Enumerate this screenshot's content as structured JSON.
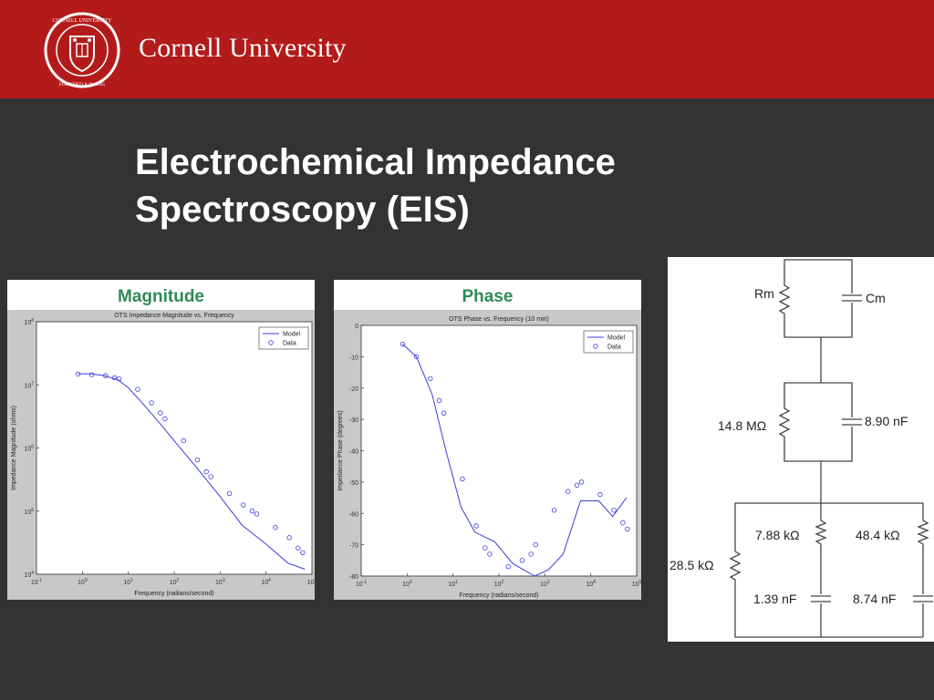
{
  "header": {
    "brand": "Cornell University",
    "seal_text": "CORNELL UNIVERSITY · FOUNDED A.D. 1865",
    "brand_color": "#b31b1b"
  },
  "slide": {
    "title_line1": "Electrochemical Impedance",
    "title_line2": "Spectroscopy (EIS)"
  },
  "magnitude_panel": {
    "label": "Magnitude"
  },
  "phase_panel": {
    "label": "Phase"
  },
  "chart_data": [
    {
      "type": "line",
      "title": "OTS Impedance Magnitude vs. Frequency",
      "xlabel": "Frequency (radians/second)",
      "ylabel": "Impedance Magnitude (ohms)",
      "xscale": "log",
      "yscale": "log",
      "xlim": [
        0.1,
        100000
      ],
      "ylim": [
        10000,
        100000000
      ],
      "xticks": [
        "10-1",
        "100",
        "101",
        "102",
        "103",
        "104",
        "105"
      ],
      "yticks": [
        "104",
        "105",
        "106",
        "107",
        "108"
      ],
      "legend": [
        "Model",
        "Data"
      ],
      "legend_position": "top-right",
      "series": [
        {
          "name": "Model",
          "style": "line",
          "color": "#3b3bdc",
          "x": [
            0.8,
            1.5,
            3,
            6,
            10,
            20,
            50,
            100,
            300,
            1000,
            3000,
            10000,
            30000,
            70000
          ],
          "y": [
            15000000,
            15000000,
            14000000,
            12000000,
            9000000,
            5200000,
            2400000,
            1300000,
            500000,
            170000,
            60000,
            30000,
            15000,
            12000
          ]
        },
        {
          "name": "Data",
          "style": "marker",
          "color": "#3b3bdc",
          "x": [
            0.8,
            1.6,
            3.2,
            5,
            6.3,
            16,
            32,
            50,
            63,
            160,
            320,
            500,
            630,
            1600,
            3200,
            5000,
            6300,
            16000,
            32000,
            50000,
            63000
          ],
          "y": [
            14800000,
            14500000,
            14000000,
            13000000,
            12500000,
            8500000,
            5200000,
            3600000,
            2900000,
            1300000,
            650000,
            420000,
            350000,
            190000,
            125000,
            100000,
            90000,
            55000,
            38000,
            26000,
            22000
          ]
        }
      ]
    },
    {
      "type": "line",
      "title": "OTS Phase vs. Frequency (10 min)",
      "xlabel": "Frequency (radians/second)",
      "ylabel": "Impedance Phase (degrees)",
      "xscale": "log",
      "xlim": [
        0.1,
        100000
      ],
      "ylim": [
        -80,
        0
      ],
      "xticks": [
        "10-1",
        "100",
        "101",
        "102",
        "103",
        "104",
        "105"
      ],
      "yticks": [
        "0",
        "-10",
        "-20",
        "-30",
        "-40",
        "-50",
        "-60",
        "-70",
        "-80"
      ],
      "legend": [
        "Model",
        "Data"
      ],
      "legend_position": "top-right",
      "series": [
        {
          "name": "Model",
          "style": "line",
          "color": "#3b3bdc",
          "x": [
            0.8,
            1.6,
            3.5,
            7,
            15,
            30,
            80,
            200,
            600,
            1200,
            2500,
            6000,
            15000,
            30000,
            60000
          ],
          "y": [
            -6,
            -10,
            -22,
            -40,
            -58,
            -66,
            -69,
            -76,
            -80,
            -78,
            -73,
            -56,
            -56,
            -61,
            -55
          ]
        },
        {
          "name": "Data",
          "style": "marker",
          "color": "#3b3bdc",
          "x": [
            0.8,
            1.6,
            3.2,
            5,
            6.3,
            16,
            32,
            50,
            63,
            160,
            320,
            500,
            630,
            1600,
            3200,
            5000,
            6300,
            16000,
            32000,
            50000,
            63000
          ],
          "y": [
            -6,
            -10,
            -17,
            -24,
            -28,
            -49,
            -64,
            -71,
            -73,
            -77,
            -75,
            -73,
            -70,
            -59,
            -53,
            -51,
            -50,
            -54,
            -59,
            -63,
            -65
          ]
        }
      ]
    }
  ],
  "circuit": {
    "top_resistor": "Rm",
    "top_capacitor": "Cm",
    "mid_resistor": "14.8 MΩ",
    "mid_capacitor": "8.90 nF",
    "left_resistor": "28.5 kΩ",
    "branch1_resistor": "7.88 kΩ",
    "branch1_capacitor": "1.39 nF",
    "branch2_resistor": "48.4 kΩ",
    "branch2_capacitor": "8.74 nF"
  }
}
